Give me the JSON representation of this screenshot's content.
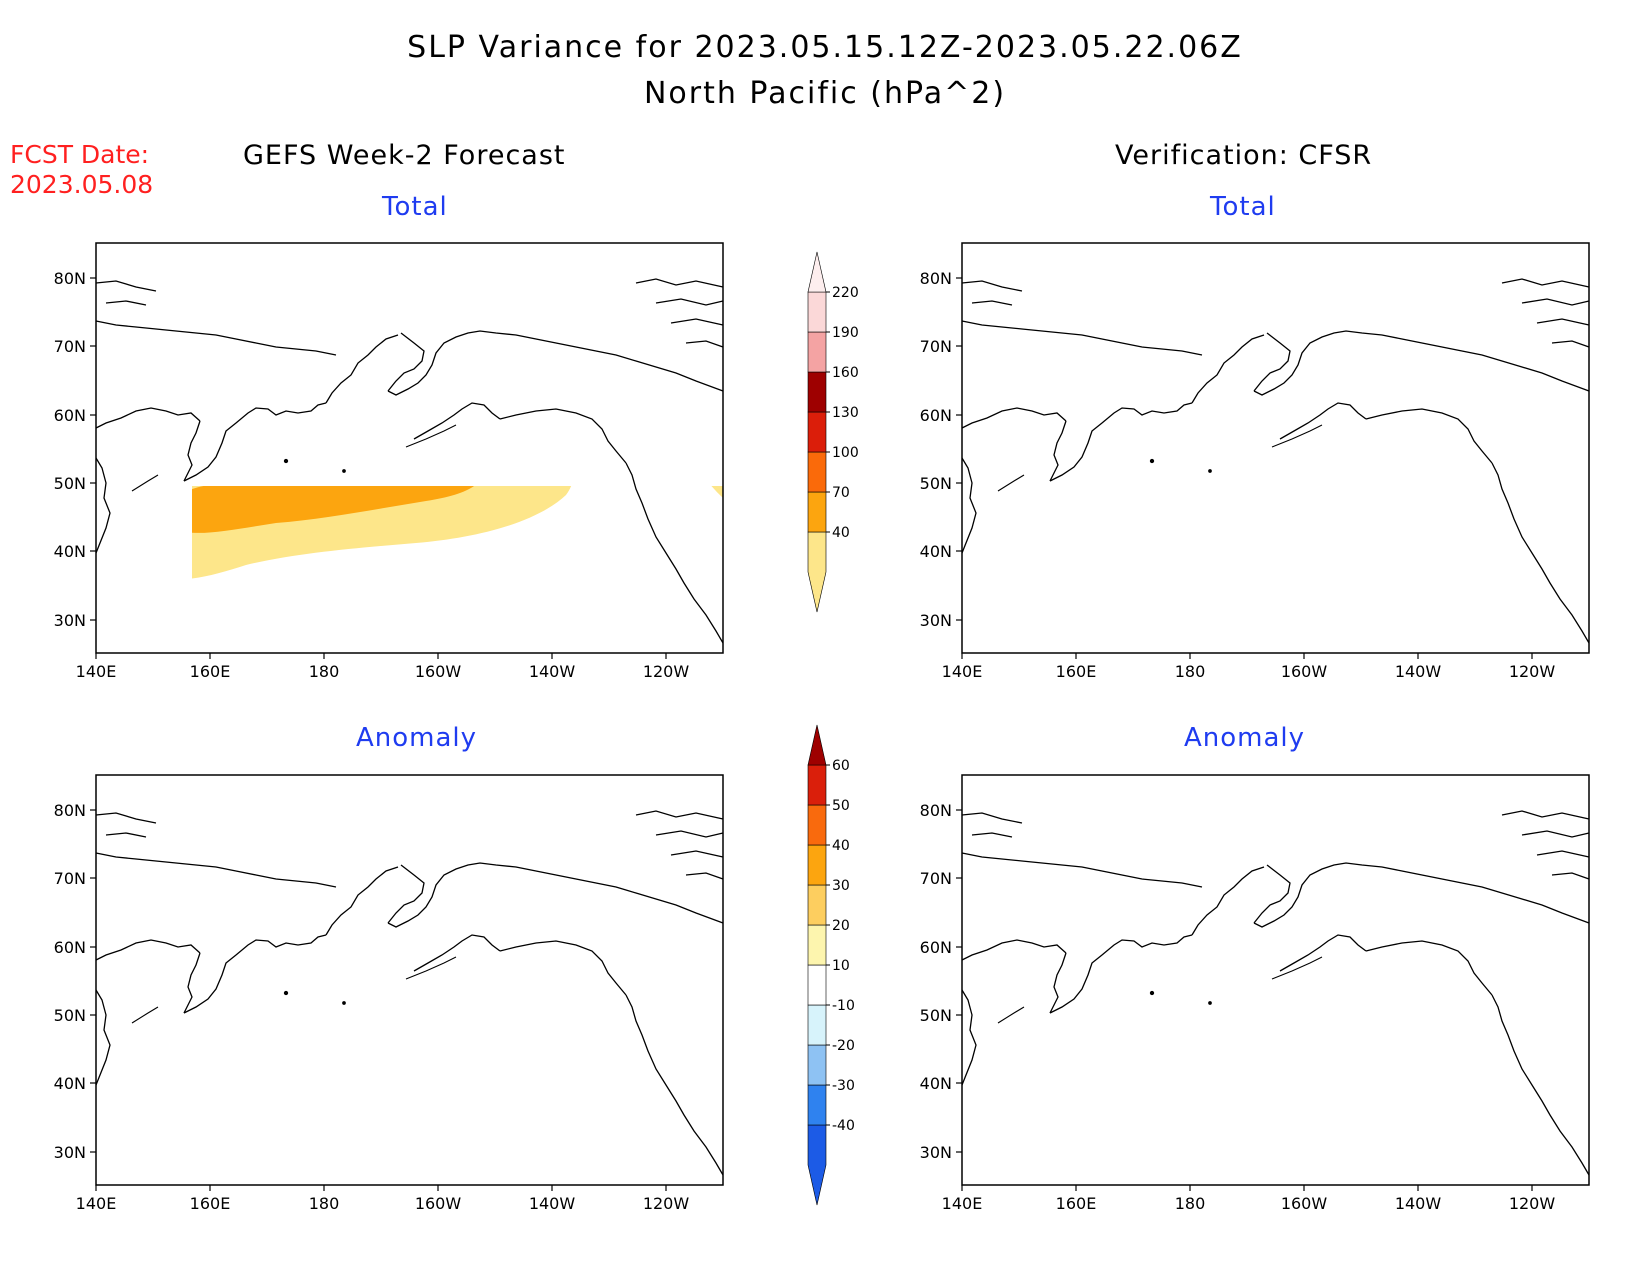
{
  "header": {
    "title_line1": "SLP Variance for 2023.05.15.12Z-2023.05.22.06Z",
    "title_line2": "North Pacific (hPa^2)",
    "fcst_label": "FCST Date:",
    "fcst_date": "2023.05.08"
  },
  "columns": {
    "left_title": "GEFS Week-2 Forecast",
    "right_title": "Verification: CFSR"
  },
  "panels": {
    "top_left_title": "Total",
    "top_right_title": "Total",
    "bottom_left_title": "Anomaly",
    "bottom_right_title": "Anomaly"
  },
  "axes": {
    "lat_labels": [
      "80N",
      "70N",
      "60N",
      "50N",
      "40N",
      "30N"
    ],
    "lon_labels": [
      "140E",
      "160E",
      "180",
      "160W",
      "140W",
      "120W"
    ]
  },
  "colorbars": {
    "total": {
      "levels": [
        "40",
        "70",
        "100",
        "130",
        "160",
        "190",
        "220"
      ],
      "colors": [
        "#fde68a",
        "#fca50f",
        "#fa6a0a",
        "#db1e0a",
        "#9e0000",
        "#f4a3a3",
        "#fbd8d8",
        "#fdeeee"
      ]
    },
    "anomaly": {
      "levels": [
        "-40",
        "-30",
        "-20",
        "-10",
        "10",
        "20",
        "30",
        "40",
        "50",
        "60"
      ],
      "colors": [
        "#1c5be6",
        "#2f82ef",
        "#8ec2f3",
        "#d7f3fb",
        "#ffffff",
        "#fdf5ae",
        "#fdce5f",
        "#fca50f",
        "#f96a0d",
        "#da1f0b",
        "#9e0000"
      ]
    }
  },
  "colors": {
    "fcst_text": "#ff2020",
    "panel_title_text": "#1f3cf0",
    "coastline": "#000000"
  }
}
